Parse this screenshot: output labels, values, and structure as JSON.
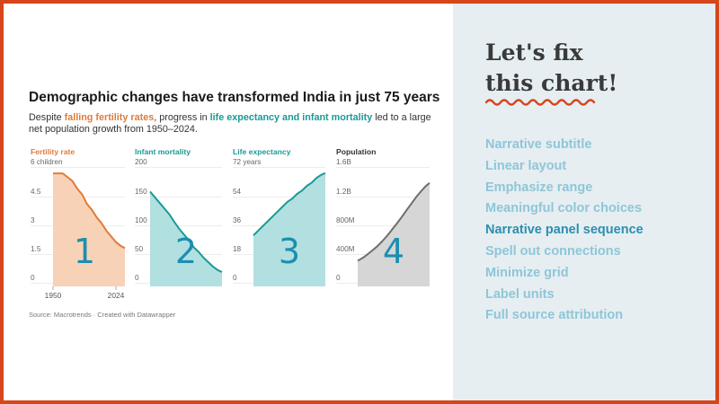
{
  "slide": {
    "heading_line1": "Let's fix",
    "heading_line2": "this chart!",
    "accent_color": "#d6461b",
    "checklist": [
      {
        "label": "Narrative subtitle",
        "active": false
      },
      {
        "label": "Linear layout",
        "active": false
      },
      {
        "label": "Emphasize range",
        "active": false
      },
      {
        "label": "Meaningful color choices",
        "active": false
      },
      {
        "label": "Narrative panel sequence",
        "active": true
      },
      {
        "label": "Spell out connections",
        "active": false
      },
      {
        "label": "Minimize grid",
        "active": false
      },
      {
        "label": "Label units",
        "active": false
      },
      {
        "label": "Full source attribution",
        "active": false
      }
    ]
  },
  "chart": {
    "title": "Demographic changes have transformed India in just 75 years",
    "subtitle_before": "Despite ",
    "subtitle_hl1": "falling fertility rates",
    "subtitle_mid": ", progress in ",
    "subtitle_hl2": "life expectancy and infant mortality",
    "subtitle_after": " led to a large net population growth from 1950–2024.",
    "source": "Source: Macrotrends · Created with Datawrapper"
  },
  "chart_data": [
    {
      "type": "area",
      "title": "Fertility rate",
      "unit": "children",
      "color": "#e07b39",
      "fill": "#f7d2b6",
      "ylim": [
        0,
        6
      ],
      "y_ticks": [
        "6 children",
        "4.5",
        "3",
        "1.5",
        "0"
      ],
      "x_range": [
        1950,
        2024
      ],
      "x_tick_labels": [
        "1950",
        "2024"
      ],
      "x": [
        1950,
        1955,
        1960,
        1965,
        1970,
        1975,
        1980,
        1985,
        1990,
        1995,
        2000,
        2005,
        2010,
        2015,
        2020,
        2024
      ],
      "y": [
        5.9,
        5.9,
        5.9,
        5.7,
        5.5,
        5.1,
        4.8,
        4.3,
        4.0,
        3.6,
        3.3,
        2.9,
        2.6,
        2.3,
        2.1,
        2.0
      ],
      "annotation": "1"
    },
    {
      "type": "area",
      "title": "Infant mortality",
      "color": "#1b9a95",
      "fill": "#b2dfe0",
      "ylim": [
        0,
        200
      ],
      "y_ticks": [
        "200",
        "150",
        "100",
        "50",
        "0"
      ],
      "x_range": [
        1950,
        2024
      ],
      "x": [
        1950,
        1955,
        1960,
        1965,
        1970,
        1975,
        1980,
        1985,
        1990,
        1995,
        2000,
        2005,
        2010,
        2015,
        2020,
        2024
      ],
      "y": [
        165,
        155,
        145,
        135,
        125,
        112,
        100,
        90,
        80,
        68,
        60,
        50,
        42,
        34,
        28,
        25
      ],
      "annotation": "2"
    },
    {
      "type": "area",
      "title": "Life expectancy",
      "unit": "years",
      "color": "#1b9a95",
      "fill": "#b2dfe0",
      "ylim": [
        0,
        72
      ],
      "y_ticks": [
        "72 years",
        "54",
        "36",
        "18",
        "0"
      ],
      "x_range": [
        1950,
        2024
      ],
      "x": [
        1950,
        1955,
        1960,
        1965,
        1970,
        1975,
        1980,
        1985,
        1990,
        1995,
        2000,
        2005,
        2010,
        2015,
        2020,
        2024
      ],
      "y": [
        32,
        35,
        38,
        41,
        44,
        47,
        50,
        53,
        55,
        58,
        60,
        63,
        65,
        68,
        70,
        71
      ],
      "annotation": "3"
    },
    {
      "type": "area",
      "title": "Population",
      "color": "#6e6e6e",
      "fill": "#d6d6d6",
      "ylim": [
        0,
        1600000000
      ],
      "y_ticks": [
        "1.6B",
        "1.2B",
        "800M",
        "400M",
        "0"
      ],
      "x_range": [
        1950,
        2024
      ],
      "x": [
        1950,
        1955,
        1960,
        1965,
        1970,
        1975,
        1980,
        1985,
        1990,
        1995,
        2000,
        2005,
        2010,
        2015,
        2020,
        2024
      ],
      "y": [
        357000000,
        395000000,
        445000000,
        500000000,
        557000000,
        625000000,
        700000000,
        785000000,
        870000000,
        960000000,
        1056000000,
        1148000000,
        1240000000,
        1322000000,
        1396000000,
        1440000000
      ],
      "annotation": "4"
    }
  ]
}
